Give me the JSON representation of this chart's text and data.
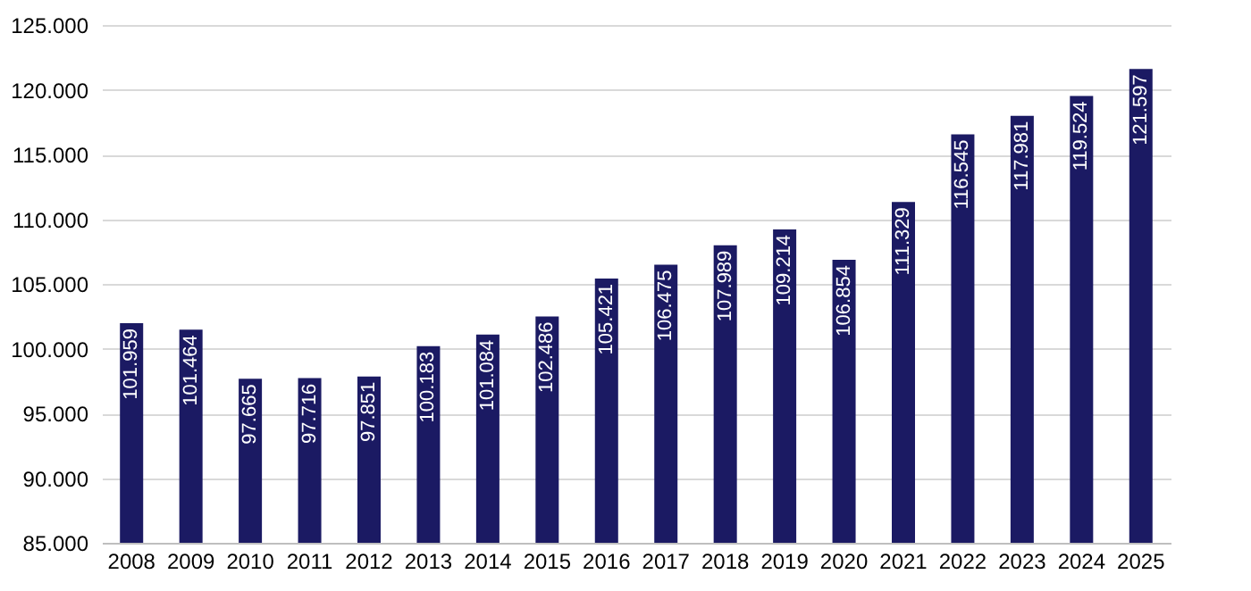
{
  "chart_data": {
    "type": "bar",
    "categories": [
      "2008",
      "2009",
      "2010",
      "2011",
      "2012",
      "2013",
      "2014",
      "2015",
      "2016",
      "2017",
      "2018",
      "2019",
      "2020",
      "2021",
      "2022",
      "2023",
      "2024",
      "2025"
    ],
    "values": [
      101959,
      101464,
      97665,
      97716,
      97851,
      100183,
      101084,
      102486,
      105421,
      106475,
      107989,
      109214,
      106854,
      111329,
      116545,
      117981,
      119524,
      121597
    ],
    "value_labels": [
      "101.959",
      "101.464",
      "97.665",
      "97.716",
      "97.851",
      "100.183",
      "101.084",
      "102.486",
      "105.421",
      "106.475",
      "107.989",
      "109.214",
      "106.854",
      "111.329",
      "116.545",
      "117.981",
      "119.524",
      "121.597"
    ],
    "color": "#1b1a63",
    "ylim": [
      85000,
      125000
    ],
    "yticks": [
      {
        "value": 85000,
        "label": "85.000"
      },
      {
        "value": 90000,
        "label": "90.000"
      },
      {
        "value": 95000,
        "label": "95.000"
      },
      {
        "value": 100000,
        "label": "100.000"
      },
      {
        "value": 105000,
        "label": "105.000"
      },
      {
        "value": 110000,
        "label": "110.000"
      },
      {
        "value": 115000,
        "label": "115.000"
      },
      {
        "value": 120000,
        "label": "120.000"
      },
      {
        "value": 125000,
        "label": "125.000"
      }
    ],
    "grid": "y"
  }
}
